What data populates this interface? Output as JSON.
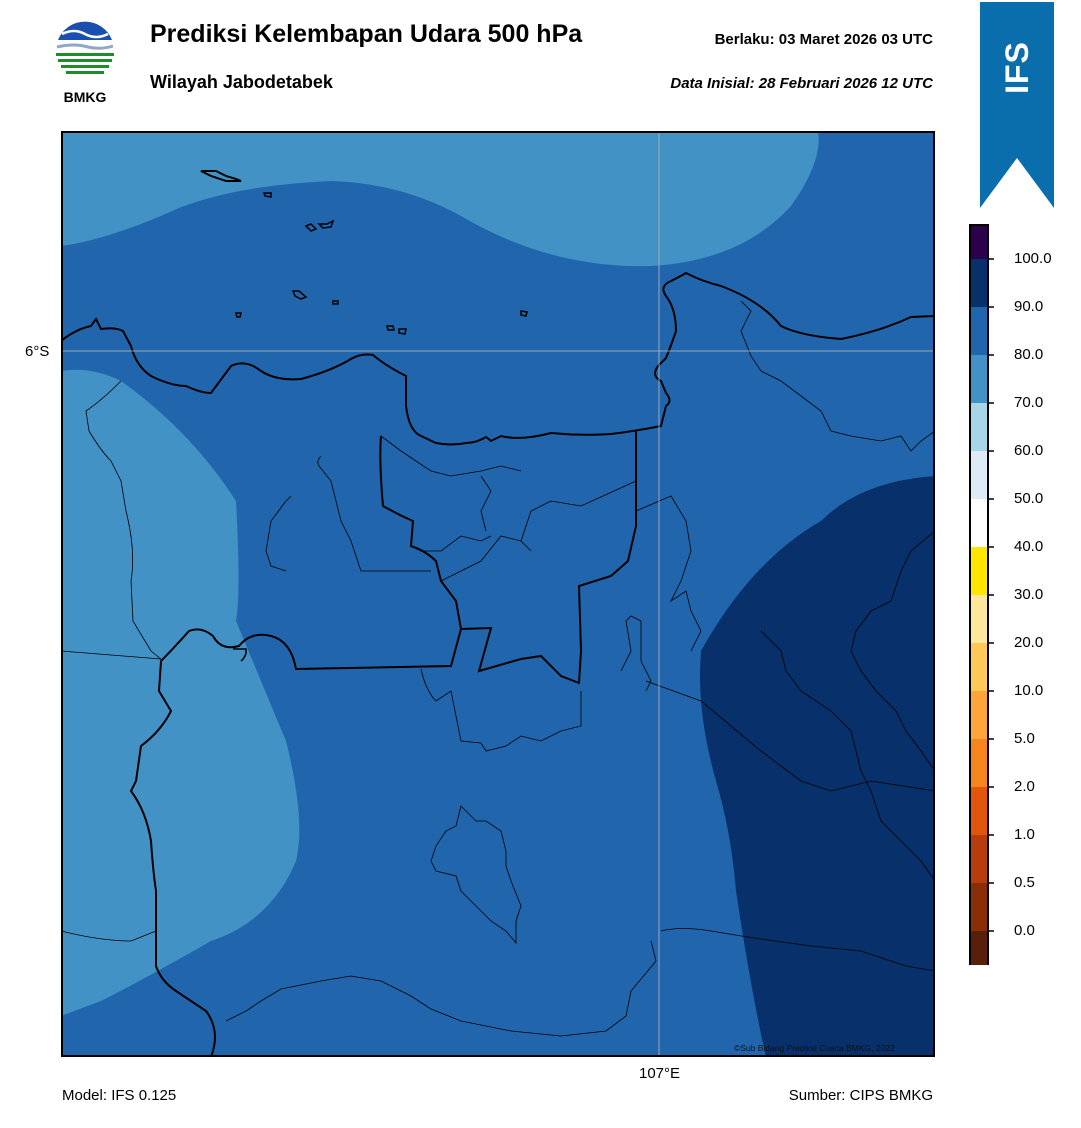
{
  "header": {
    "title": "Prediksi Kelembapan Udara 500 hPa",
    "subtitle": "Wilayah Jabodetabek",
    "valid": "Berlaku:  03 Maret 2026 03 UTC",
    "initial": "Data Inisial:  28 Februari 2026 12 UTC",
    "logo_text": "BMKG",
    "badge": "IFS"
  },
  "map": {
    "lat_label": "6°S",
    "lon_label": "107°E",
    "credit": "©Sub Bidang Prediksi Cuaca BMKG, 2022",
    "field_colors": {
      "70-80": "#4292c6",
      "80-90": "#2166ac",
      "90-100": "#08306b"
    }
  },
  "colorbar": {
    "ticks": [
      "100.0",
      "90.0",
      "80.0",
      "70.0",
      "60.0",
      "50.0",
      "40.0",
      "30.0",
      "20.0",
      "10.0",
      "5.0",
      "2.0",
      "1.0",
      "0.5",
      "0.0"
    ],
    "colors_top_to_bottom": [
      "#2d004b",
      "#08306b",
      "#2166ac",
      "#4292c6",
      "#a6d5e8",
      "#deebf7",
      "#ffffff",
      "#ffe600",
      "#ffe79b",
      "#ffc857",
      "#ffa53c",
      "#f7851e",
      "#e3550d",
      "#b63d0c",
      "#8a2e08",
      "#5a1f0a",
      "#b01c1c",
      "#e8382b"
    ]
  },
  "footer": {
    "model": "Model: IFS 0.125",
    "source": "Sumber: CIPS BMKG"
  }
}
